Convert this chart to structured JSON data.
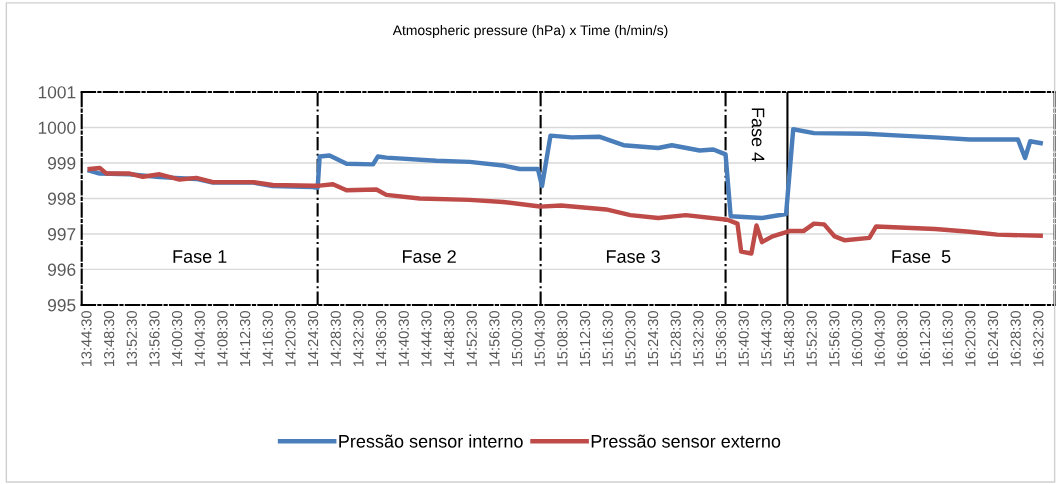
{
  "chart_data": {
    "type": "line",
    "title": "Atmospheric pressure (hPa) x Time (h/min/s)",
    "xlim": [
      13.724,
      16.586
    ],
    "ylim": [
      995,
      1001
    ],
    "yticks": [
      995,
      996,
      997,
      998,
      999,
      1000,
      1001
    ],
    "xticks": [
      {
        "value": 13.7417,
        "label": "13:44:30"
      },
      {
        "value": 13.8083,
        "label": "13:48:30"
      },
      {
        "value": 13.875,
        "label": "13:52:30"
      },
      {
        "value": 13.9417,
        "label": "13:56:30"
      },
      {
        "value": 14.0083,
        "label": "14:00:30"
      },
      {
        "value": 14.075,
        "label": "14:04:30"
      },
      {
        "value": 14.1417,
        "label": "14:08:30"
      },
      {
        "value": 14.2083,
        "label": "14:12:30"
      },
      {
        "value": 14.275,
        "label": "14:16:30"
      },
      {
        "value": 14.3417,
        "label": "14:20:30"
      },
      {
        "value": 14.4083,
        "label": "14:24:30"
      },
      {
        "value": 14.475,
        "label": "14:28:30"
      },
      {
        "value": 14.5417,
        "label": "14:32:30"
      },
      {
        "value": 14.6083,
        "label": "14:36:30"
      },
      {
        "value": 14.675,
        "label": "14:40:30"
      },
      {
        "value": 14.7417,
        "label": "14:44:30"
      },
      {
        "value": 14.8083,
        "label": "14:48:30"
      },
      {
        "value": 14.875,
        "label": "14:52:30"
      },
      {
        "value": 14.9417,
        "label": "14:56:30"
      },
      {
        "value": 15.0083,
        "label": "15:00:30"
      },
      {
        "value": 15.075,
        "label": "15:04:30"
      },
      {
        "value": 15.1417,
        "label": "15:08:30"
      },
      {
        "value": 15.2083,
        "label": "15:12:30"
      },
      {
        "value": 15.275,
        "label": "15:16:30"
      },
      {
        "value": 15.3417,
        "label": "15:20:30"
      },
      {
        "value": 15.4083,
        "label": "15:24:30"
      },
      {
        "value": 15.475,
        "label": "15:28:30"
      },
      {
        "value": 15.5417,
        "label": "15:32:30"
      },
      {
        "value": 15.6083,
        "label": "15:36:30"
      },
      {
        "value": 15.675,
        "label": "15:40:30"
      },
      {
        "value": 15.7417,
        "label": "15:44:30"
      },
      {
        "value": 15.8083,
        "label": "15:48:30"
      },
      {
        "value": 15.875,
        "label": "15:52:30"
      },
      {
        "value": 15.9417,
        "label": "15:56:30"
      },
      {
        "value": 16.0083,
        "label": "16:00:30"
      },
      {
        "value": 16.075,
        "label": "16:04:30"
      },
      {
        "value": 16.1417,
        "label": "16:08:30"
      },
      {
        "value": 16.2083,
        "label": "16:12:30"
      },
      {
        "value": 16.275,
        "label": "16:16:30"
      },
      {
        "value": 16.3417,
        "label": "16:20:30"
      },
      {
        "value": 16.4083,
        "label": "16:24:30"
      },
      {
        "value": 16.475,
        "label": "16:28:30"
      },
      {
        "value": 16.5417,
        "label": "16:32:30"
      }
    ],
    "grid": "y",
    "legend": "bottom",
    "marker": "none",
    "line_style": "solid",
    "series": [
      {
        "name": "Pressão sensor interno",
        "color": "#4a7ebb",
        "x": [
          13.7475,
          13.777,
          13.865,
          13.953,
          14.061,
          14.11,
          14.228,
          14.286,
          14.404,
          14.418,
          14.424,
          14.453,
          14.503,
          14.581,
          14.595,
          14.62,
          14.767,
          14.865,
          14.963,
          15.012,
          15.066,
          15.078,
          15.103,
          15.165,
          15.246,
          15.318,
          15.42,
          15.46,
          15.542,
          15.582,
          15.618,
          15.633,
          15.725,
          15.796,
          15.817,
          15.878,
          16.03,
          16.132,
          16.234,
          16.336,
          16.478,
          16.499,
          16.514,
          16.545
        ],
        "values": [
          998.78,
          998.7,
          998.68,
          998.6,
          998.55,
          998.45,
          998.45,
          998.35,
          998.32,
          998.3,
          999.18,
          999.21,
          998.98,
          998.96,
          999.18,
          999.15,
          999.06,
          999.03,
          998.93,
          998.83,
          998.83,
          998.35,
          999.77,
          999.72,
          999.74,
          999.5,
          999.42,
          999.5,
          999.35,
          999.38,
          999.24,
          997.5,
          997.45,
          997.56,
          999.95,
          999.84,
          999.82,
          999.77,
          999.72,
          999.66,
          999.66,
          999.14,
          999.61,
          999.56
        ]
      },
      {
        "name": "Pressão sensor externo",
        "color": "#be4b48",
        "x": [
          13.7475,
          13.777,
          13.797,
          13.865,
          13.904,
          13.953,
          14.012,
          14.061,
          14.11,
          14.228,
          14.286,
          14.404,
          14.424,
          14.463,
          14.503,
          14.591,
          14.62,
          14.718,
          14.865,
          14.963,
          15.066,
          15.073,
          15.134,
          15.267,
          15.338,
          15.42,
          15.501,
          15.623,
          15.653,
          15.664,
          15.694,
          15.709,
          15.725,
          15.756,
          15.806,
          15.847,
          15.878,
          15.908,
          15.939,
          15.969,
          16.041,
          16.061,
          16.234,
          16.336,
          16.417,
          16.545
        ],
        "values": [
          998.83,
          998.86,
          998.7,
          998.7,
          998.61,
          998.68,
          998.53,
          998.58,
          998.46,
          998.46,
          998.38,
          998.36,
          998.36,
          998.4,
          998.23,
          998.25,
          998.1,
          998.0,
          997.96,
          997.9,
          997.78,
          997.77,
          997.8,
          997.69,
          997.53,
          997.45,
          997.53,
          997.4,
          997.29,
          996.5,
          996.45,
          997.24,
          996.77,
          996.93,
          997.08,
          997.08,
          997.29,
          997.27,
          996.93,
          996.82,
          996.89,
          997.21,
          997.14,
          997.06,
          996.98,
          996.95
        ]
      }
    ],
    "annotations": [
      "Fase 1",
      "Fase 2",
      "Fase 3",
      "Fase 4",
      "Fase  5"
    ],
    "ref_lines": [
      {
        "axis": "x",
        "value": 14.418,
        "color": "#000000",
        "line_style": "dashed"
      },
      {
        "axis": "x",
        "value": 15.074,
        "color": "#000000",
        "line_style": "dashed"
      },
      {
        "axis": "x",
        "value": 15.618,
        "color": "#000000",
        "line_style": "dashed"
      },
      {
        "axis": "x",
        "value": 15.8,
        "color": "#000000",
        "line_style": "solid"
      }
    ]
  }
}
